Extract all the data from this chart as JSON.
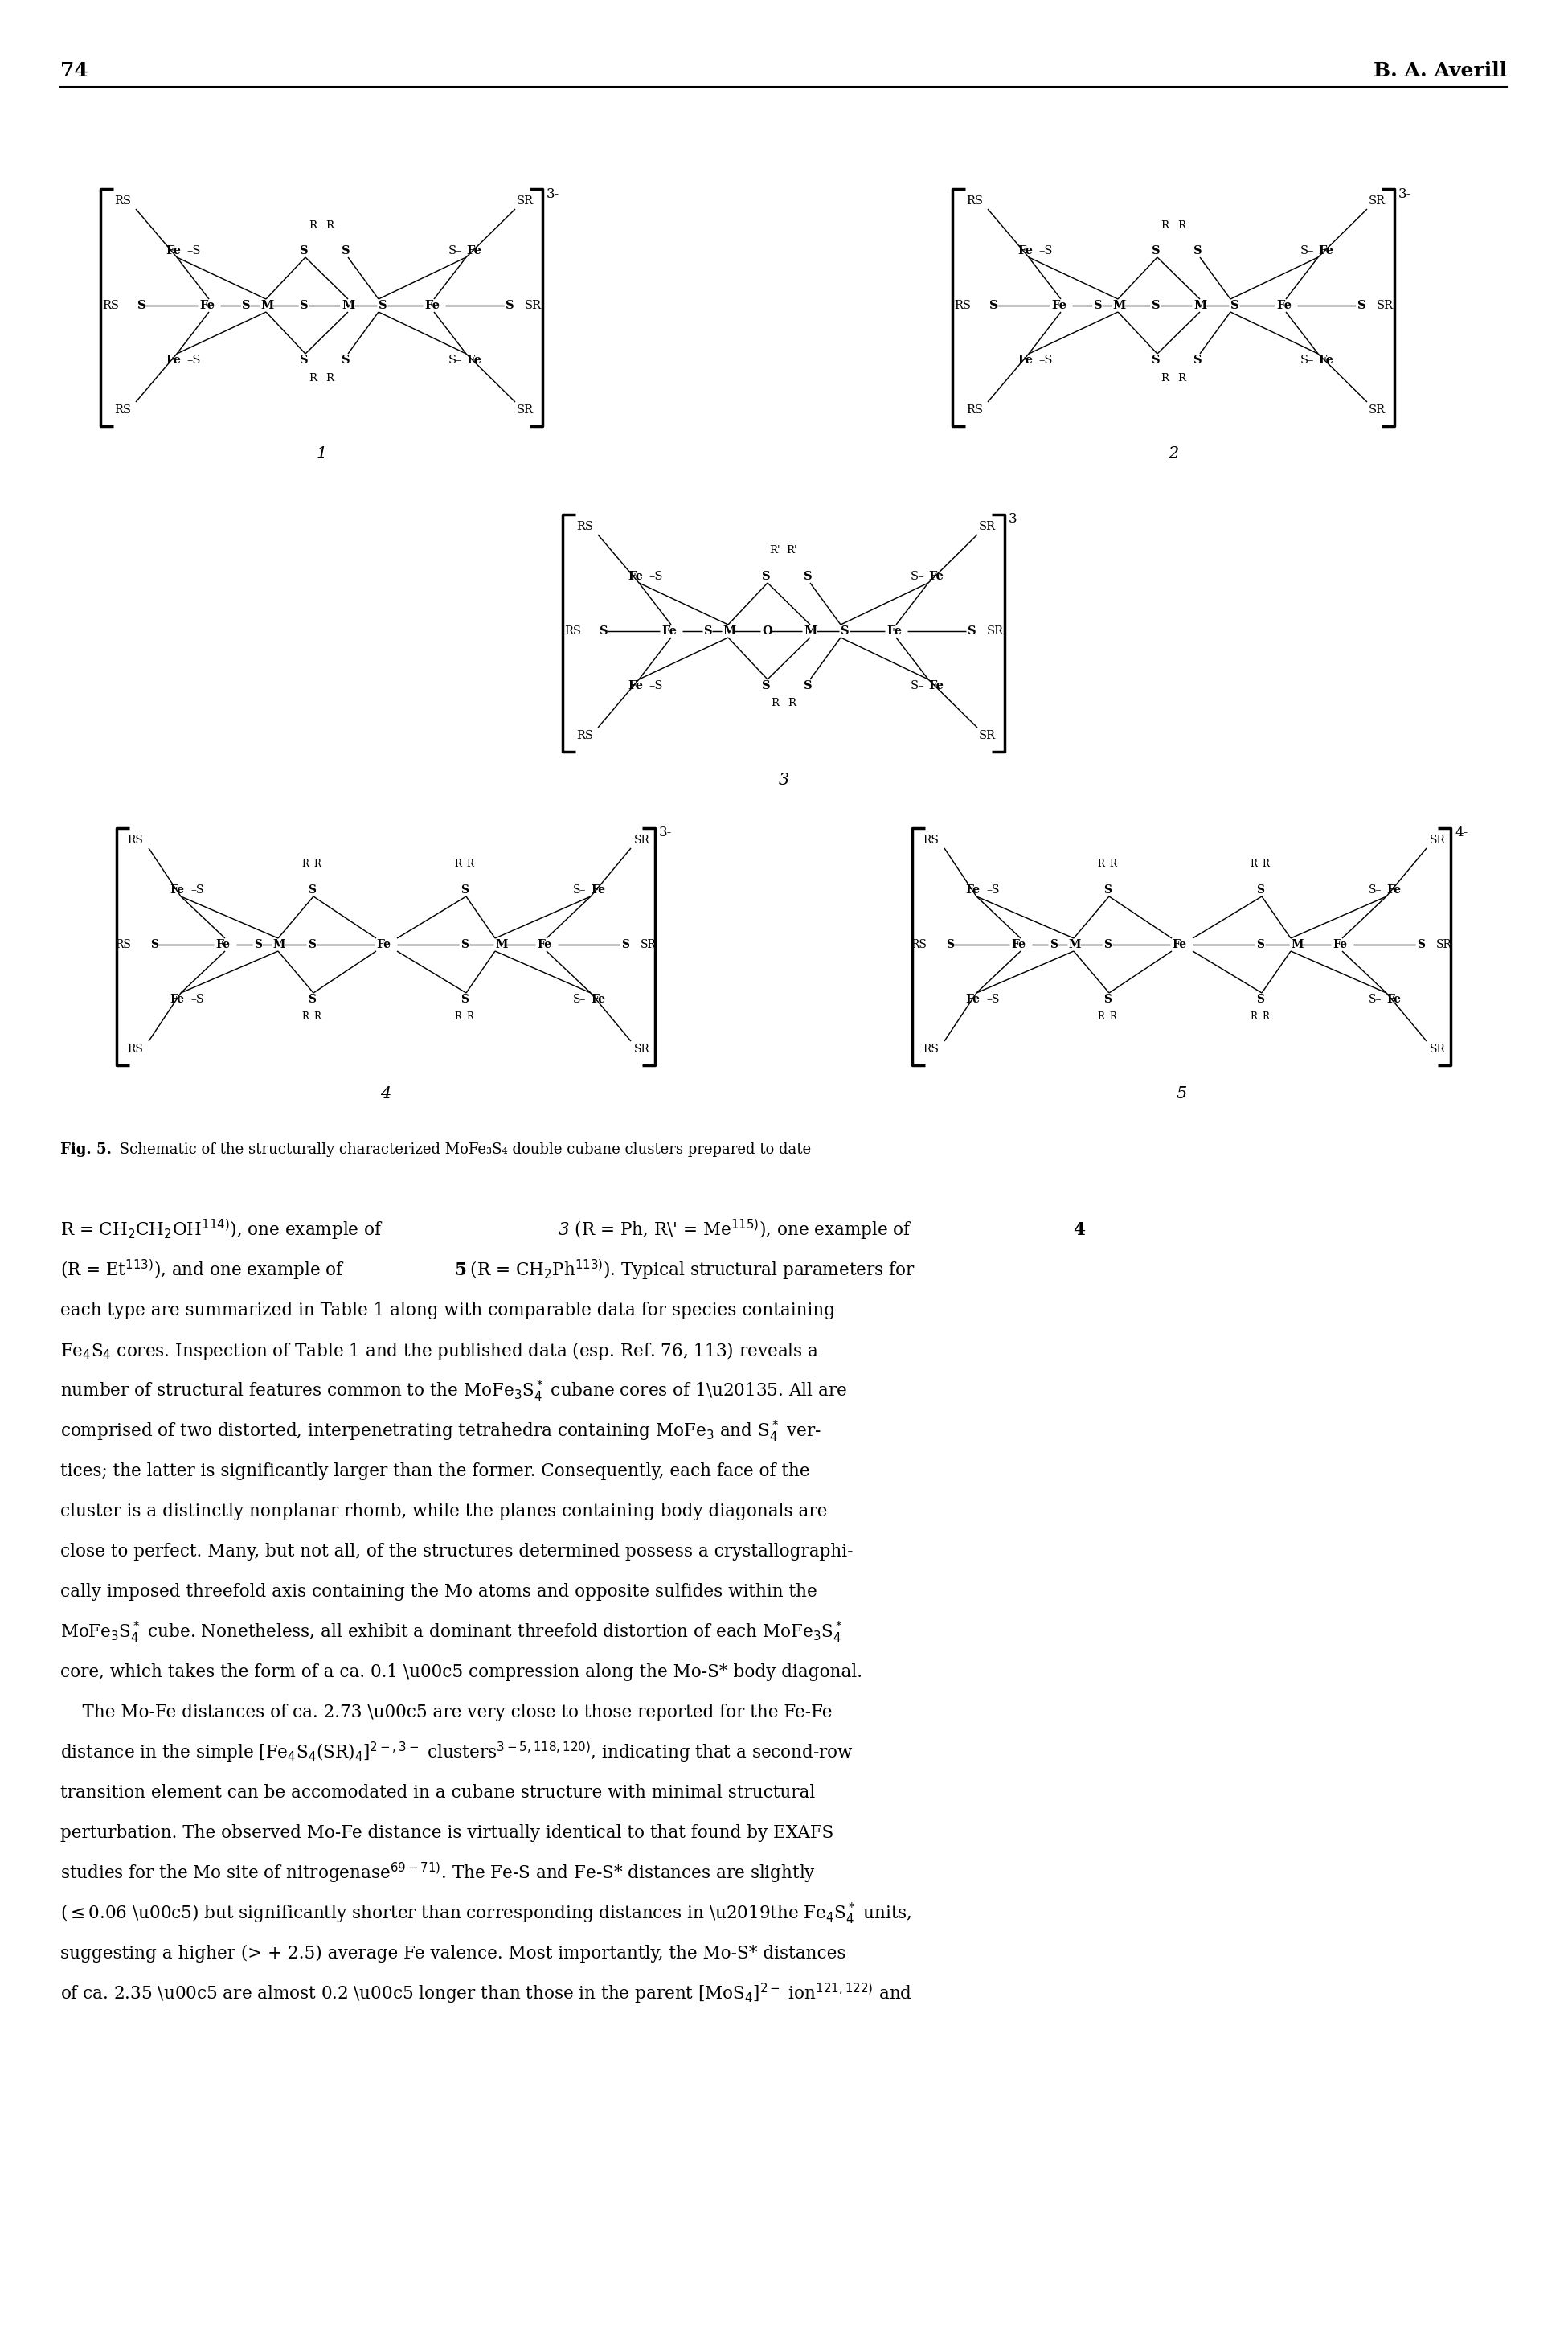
{
  "page_number": "74",
  "header_right": "B. A. Averill",
  "fig_caption_bold": "Fig. 5.",
  "fig_caption_rest": " Schematic of the structurally characterized MoFe₃S₄ double cubane clusters prepared to date",
  "body_paragraphs": [
    "R = CH₂CH₂OH¹¹⁴)), one example of ¿3¿ (R = Ph, R’ = Me¹¹⁵)), one example of ¿4¿",
    "(R = Et¹¹³)), and one example of ¿5¿ (R = CH₂Ph¹¹³)). Typical structural parameters for",
    "each type are summarized in Table 1 along with comparable data for species containing",
    "Fe₄S₄ cores. Inspection of Table 1 and the published data (esp. Ref. 76, 113) reveals a",
    "number of structural features common to the MoFe₃S₄* cubane cores of 1–5. All are",
    "comprised of two distorted, interpenetrating tetrahedra containing MoFe₃ and S₄* ver-",
    "tices; the latter is significantly larger than the former. Consequently, each face of the",
    "cluster is a distinctly nonplanar rhomb, while the planes containing body diagonals are",
    "close to perfect. Many, but not all, of the structures determined possess a crystallographi-",
    "cally imposed threefold axis containing the Mo atoms and opposite sulfides within the",
    "MoFe₃S₄* cube. Nonetheless, all exhibit a dominant threefold distortion of each MoFe₃S₄*",
    "core, which takes the form of a ca. 0.1 Å compression along the Mo-S* body diagonal.",
    "    The Mo-Fe distances of ca. 2.73 Å are very close to those reported for the Fe-Fe",
    "distance in the simple [Fe₄S₄(SR)₄]²⁻,³⁻ clusters³⁻⁵, ¹¹⁸, ¹²⁰), indicating that a second-row",
    "transition element can be accomodated in a cubane structure with minimal structural",
    "perturbation. The observed Mo-Fe distance is virtually identical to that found by EXAFS",
    "studies for the Mo site of nitrogenase⁶⁹⁻⁷¹). The Fe-S and Fe-S* distances are slightly",
    "(≤0.06 Å) but significantly shorter than corresponding distances in the Fe₄S₄* units,",
    "suggesting a higher (> + 2.5) average Fe valence. Most importantly, the Mo-S* distances",
    "of ca. 2.35 Å are almost 0.2 Å longer than those in the parent [MoS₄]²⁻ ion¹²¹, ¹²²) and"
  ]
}
